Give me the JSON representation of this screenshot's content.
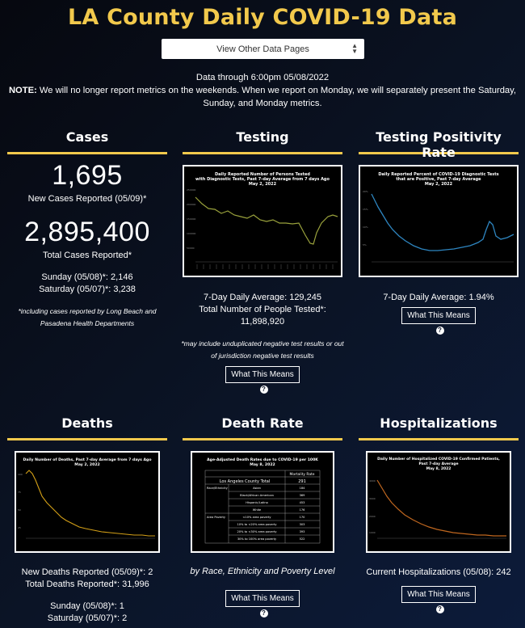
{
  "header": {
    "title": "LA County Daily COVID-19 Data",
    "select_label": "View Other Data Pages",
    "data_through": "Data through 6:00pm 05/08/2022",
    "note_label": "NOTE:",
    "note_text": "We will no longer report metrics on the weekends. When we report on Monday, we will separately present the Saturday, Sunday, and Monday metrics."
  },
  "cases": {
    "heading": "Cases",
    "new_value": "1,695",
    "new_label": "New Cases Reported (05/09)*",
    "total_value": "2,895,400",
    "total_label": "Total Cases Reported*",
    "sunday": "Sunday (05/08)*: 2,146",
    "saturday": "Saturday (05/07)*: 3,238",
    "footnote": "*including cases reported by Long Beach and Pasadena Health Departments"
  },
  "testing": {
    "heading": "Testing",
    "chart_title": "Daily Reported Number of Persons Tested with Diagnostic Tests, Past 7-day Average from 7 days Ago May 2, 2022",
    "avg": "7-Day Daily Average: 129,245",
    "total_label": "Total Number of People Tested*:",
    "total_value": "11,898,920",
    "footnote": "*may include unduplicated negative test results or out of jurisdiction negative test results",
    "button": "What This Means"
  },
  "positivity": {
    "heading": "Testing Positivity Rate",
    "chart_title": "Daily Reported Percent of COVID-19 Diagnostic Tests that are Positive, Past 7-day Average May 2, 2022",
    "avg": "7-Day Daily Average: 1.94%",
    "button": "What This Means"
  },
  "deaths": {
    "heading": "Deaths",
    "chart_title": "Daily Number of Deaths, Past 7-day Average from 7 days Ago May 2, 2022",
    "new": "New Deaths Reported (05/09)*: 2",
    "total": "Total Deaths Reported*: 31,996",
    "sunday": "Sunday (05/08)*: 1",
    "saturday": "Saturday (05/07)*: 2"
  },
  "death_rate": {
    "heading": "Death Rate",
    "chart_title": "Age-Adjusted Death Rates due to COVID-19 per 100K May 8, 2022",
    "caption": "by Race, Ethnicity and Poverty Level",
    "button": "What This Means",
    "table": {
      "header": "Mortality Rate",
      "total_label": "Los Angeles County Total",
      "total_value": "291",
      "rows": [
        {
          "group": "Race/Ethnicity",
          "label": "Asian",
          "value": "184"
        },
        {
          "group": "",
          "label": "Black/African American",
          "value": "369"
        },
        {
          "group": "",
          "label": "Hispanic/Latino",
          "value": "453"
        },
        {
          "group": "",
          "label": "White",
          "value": "176"
        },
        {
          "group": "Area Poverty",
          "label": "<10% area poverty",
          "value": "170"
        },
        {
          "group": "",
          "label": "10% to <20% area poverty",
          "value": "303"
        },
        {
          "group": "",
          "label": "20% to <30% area poverty",
          "value": "393"
        },
        {
          "group": "",
          "label": "30% to 100% area poverty",
          "value": "522"
        }
      ]
    }
  },
  "hospitalizations": {
    "heading": "Hospitalizations",
    "chart_title": "Daily Number of Hospitalized COVID-19 Confirmed Patients, Past 7-day Average May 8, 2022",
    "current": "Current Hospitalizations (05/08): 242",
    "button": "What This Means"
  },
  "colors": {
    "accent": "#f2c94c",
    "testing_line": "#9aa23c",
    "positivity_line": "#2e86c1",
    "deaths_line": "#d4a017",
    "hosp_line": "#c0671f"
  }
}
